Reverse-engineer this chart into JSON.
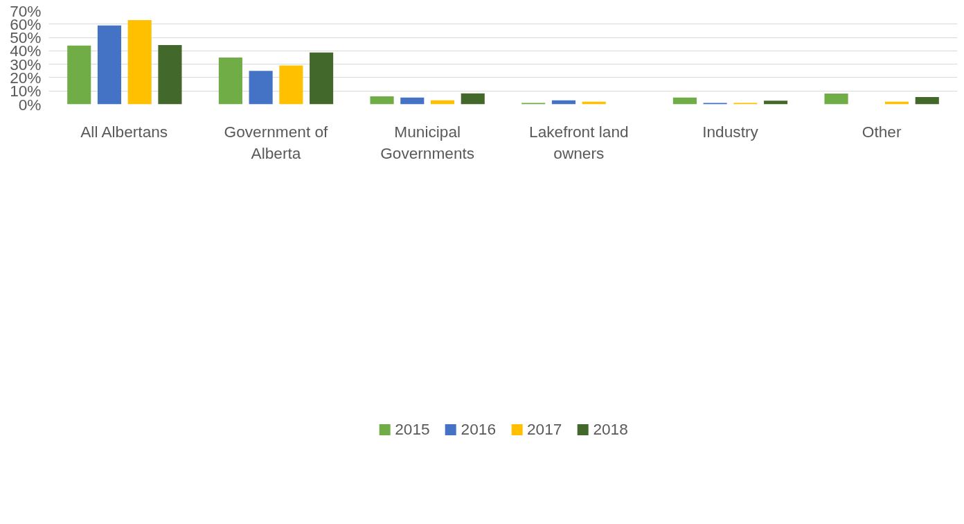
{
  "chart_data": {
    "type": "bar",
    "categories": [
      "All Albertans",
      "Government of Alberta",
      "Municipal Governments",
      "Lakefront land owners",
      "Industry",
      "Other"
    ],
    "series": [
      {
        "name": "2015",
        "color": "#70ad47",
        "values": [
          44,
          35,
          6,
          1,
          5,
          8
        ]
      },
      {
        "name": "2016",
        "color": "#4472c4",
        "values": [
          59,
          25,
          5,
          3,
          1,
          0
        ]
      },
      {
        "name": "2017",
        "color": "#ffc000",
        "values": [
          63,
          29,
          3,
          2,
          1,
          2
        ]
      },
      {
        "name": "2018",
        "color": "#43682b",
        "values": [
          44.3,
          38.8,
          8.2,
          0,
          2.7,
          5.5
        ]
      }
    ],
    "ylim": [
      0,
      70
    ],
    "yticks": [
      {
        "value": 0,
        "label": "0%"
      },
      {
        "value": 10,
        "label": "10%"
      },
      {
        "value": 20,
        "label": "20%"
      },
      {
        "value": 30,
        "label": "30%"
      },
      {
        "value": 40,
        "label": "40%"
      },
      {
        "value": 50,
        "label": "50%"
      },
      {
        "value": 60,
        "label": "60%"
      },
      {
        "value": 70,
        "label": "70%"
      }
    ],
    "grid": "y",
    "legend": "bottom"
  }
}
